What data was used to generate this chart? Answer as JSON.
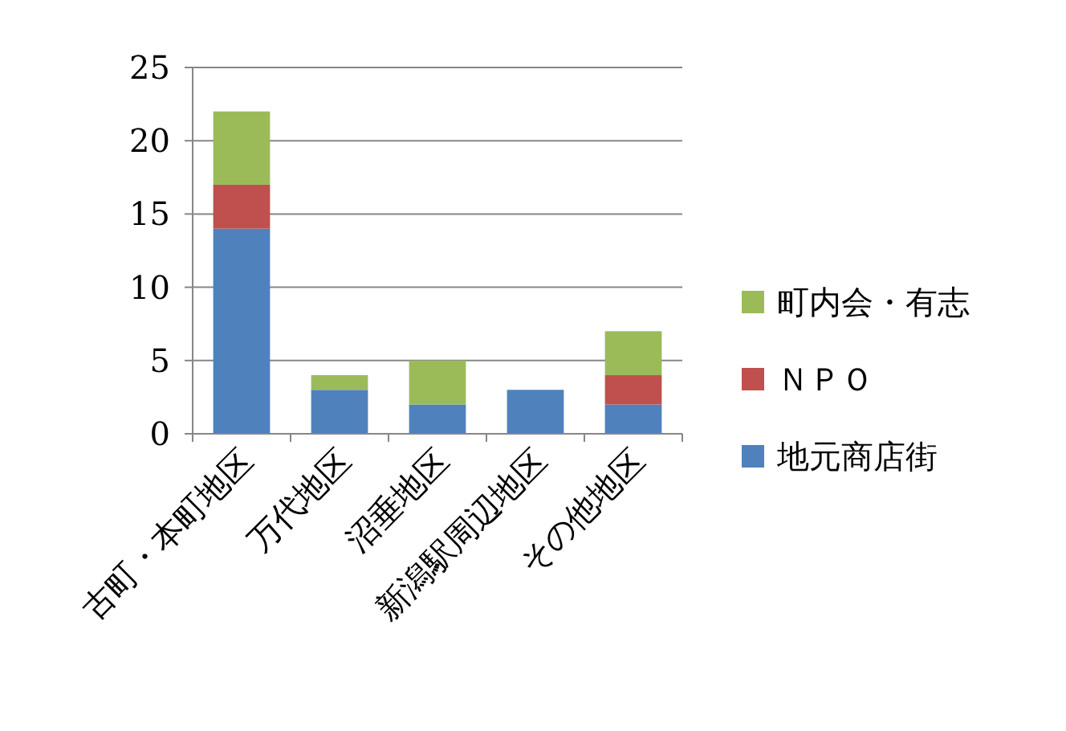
{
  "chart_data": {
    "type": "bar",
    "stacked": true,
    "categories": [
      "古町・本町地区",
      "万代地区",
      "沼垂地区",
      "新潟駅周辺地区",
      "その他地区"
    ],
    "series": [
      {
        "name": "地元商店街",
        "color": "#4f81bd",
        "values": [
          14,
          3,
          2,
          3,
          2
        ]
      },
      {
        "name": "ＮＰＯ",
        "color": "#c0504d",
        "values": [
          3,
          0,
          0,
          0,
          2
        ]
      },
      {
        "name": "町内会・有志",
        "color": "#9bbb59",
        "values": [
          5,
          1,
          3,
          0,
          3
        ]
      }
    ],
    "ylim": [
      0,
      25
    ],
    "yticks": [
      0,
      5,
      10,
      15,
      20,
      25
    ],
    "grid": "y",
    "legend": "right"
  }
}
